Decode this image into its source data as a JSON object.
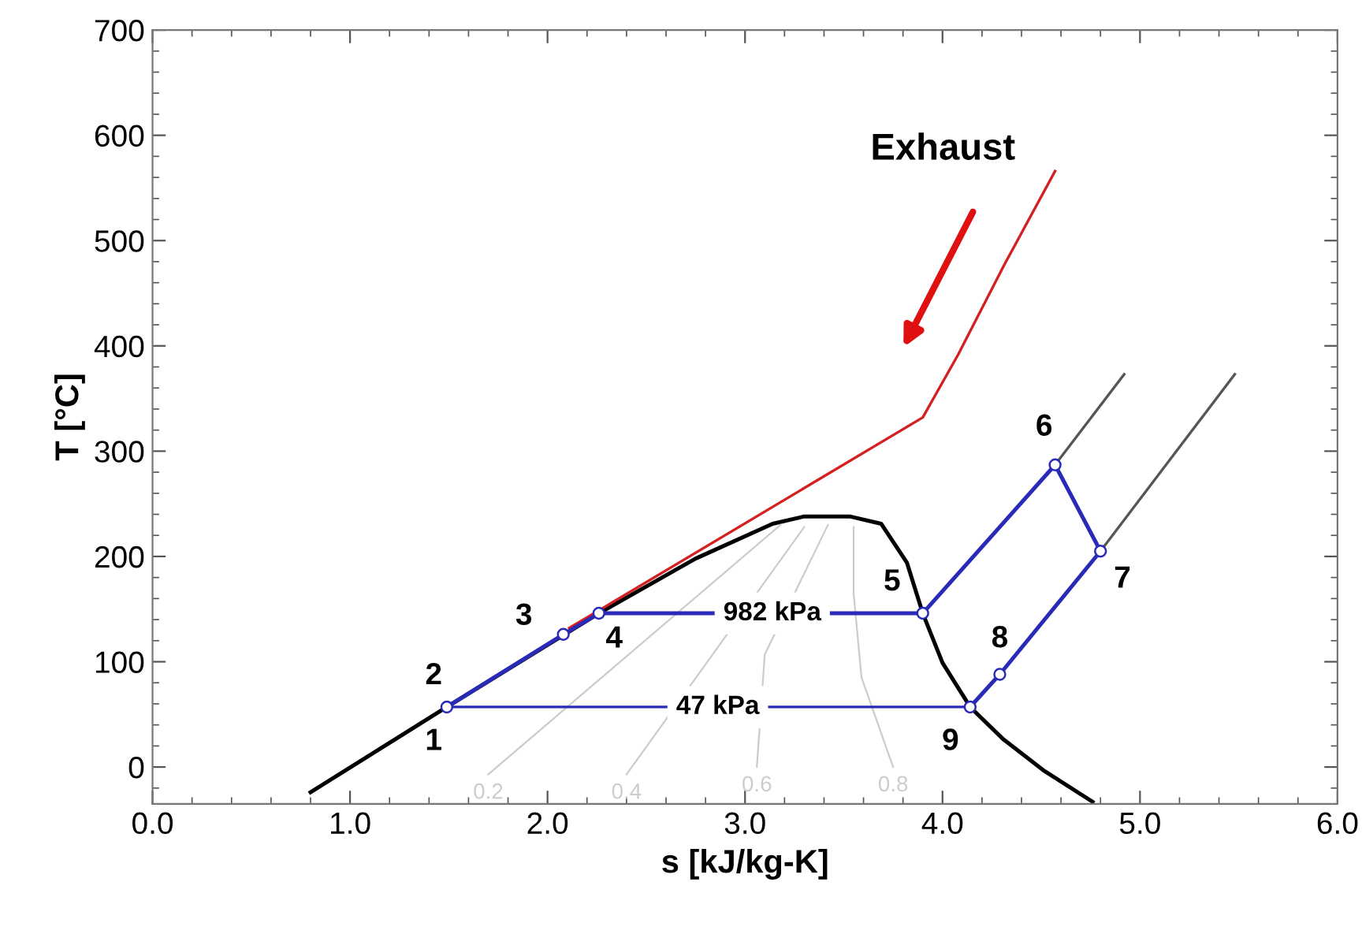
{
  "chart_data": {
    "type": "line",
    "xlabel": "s [kJ/kg-K]",
    "ylabel": "T [°C]",
    "xlim": [
      0,
      6
    ],
    "ylim": [
      -35,
      700
    ],
    "xticks": [
      {
        "value": 0,
        "label": "0.0"
      },
      {
        "value": 1,
        "label": "1.0"
      },
      {
        "value": 2,
        "label": "2.0"
      },
      {
        "value": 3,
        "label": "3.0"
      },
      {
        "value": 4,
        "label": "4.0"
      },
      {
        "value": 5,
        "label": "5.0"
      },
      {
        "value": 6,
        "label": "6.0"
      }
    ],
    "yticks": [
      0,
      100,
      200,
      300,
      400,
      500,
      600,
      700
    ],
    "grid": false,
    "series": [
      {
        "color": "#000000",
        "x": [
          0.8,
          1.49,
          2.26,
          2.75,
          3.14,
          3.3,
          3.53,
          3.69,
          3.82,
          3.9,
          4.0,
          4.14,
          4.31,
          4.51,
          4.76
        ],
        "values": [
          -24,
          57,
          146,
          198,
          231,
          238,
          238,
          231,
          194,
          146,
          99,
          57,
          26,
          -3,
          -33
        ]
      },
      {
        "name": "0.2",
        "color": "#cccccc",
        "x": [
          1.7,
          3.18
        ],
        "values": [
          -7,
          230
        ]
      },
      {
        "name": "0.4",
        "color": "#cccccc",
        "x": [
          2.4,
          3.3
        ],
        "values": [
          -7,
          228
        ]
      },
      {
        "name": "0.6",
        "color": "#cccccc",
        "x": [
          3.06,
          3.1,
          3.42
        ],
        "values": [
          0,
          107,
          230
        ]
      },
      {
        "name": "0.8",
        "color": "#cccccc",
        "x": [
          3.75,
          3.59,
          3.55,
          3.55
        ],
        "values": [
          0,
          85,
          165,
          228
        ]
      },
      {
        "color": "#555555",
        "x": [
          4.57,
          4.92
        ],
        "values": [
          287,
          373
        ]
      },
      {
        "color": "#555555",
        "x": [
          4.8,
          5.48
        ],
        "values": [
          205,
          373
        ]
      },
      {
        "color": "#d42020",
        "x": [
          2.11,
          3.9,
          4.08,
          4.31,
          4.57
        ],
        "values": [
          132,
          332,
          392,
          476,
          566
        ]
      },
      {
        "color": "#2a2ab8",
        "marker": "circle",
        "x": [
          1.49,
          2.08,
          2.26,
          3.9,
          4.57,
          4.8,
          4.29,
          4.14
        ],
        "values": [
          57,
          126,
          146,
          146,
          287,
          205,
          88,
          57
        ]
      },
      {
        "color": "#2a2ab8",
        "x": [
          4.14,
          1.49
        ],
        "values": [
          57,
          57
        ]
      }
    ],
    "annotations": [
      {
        "text": "1",
        "x": 1.49,
        "y": 57
      },
      {
        "text": "2",
        "x": 1.49,
        "y": 57
      },
      {
        "text": "3",
        "x": 2.08,
        "y": 126
      },
      {
        "text": "4",
        "x": 2.26,
        "y": 146
      },
      {
        "text": "5",
        "x": 3.9,
        "y": 146
      },
      {
        "text": "6",
        "x": 4.57,
        "y": 287
      },
      {
        "text": "7",
        "x": 4.8,
        "y": 205
      },
      {
        "text": "8",
        "x": 4.29,
        "y": 88
      },
      {
        "text": "9",
        "x": 4.14,
        "y": 57
      },
      "982 kPa",
      "47 kPa",
      "Exhaust"
    ]
  }
}
